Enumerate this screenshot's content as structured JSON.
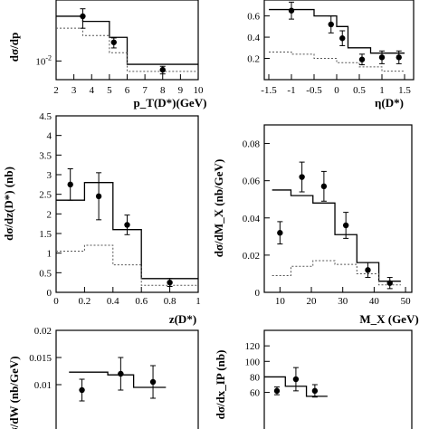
{
  "chart_data": [
    {
      "type": "line",
      "xlabel": "p_T(D*)(GeV)",
      "ylabel": "dσ/dp",
      "xlim": [
        2,
        10
      ],
      "ylim": [
        0.004,
        0.2
      ],
      "log_y": true,
      "x_ticks": [
        "2",
        "3",
        "4",
        "5",
        "6",
        "7",
        "8",
        "9",
        "10"
      ],
      "y_ticks": [
        "10^-2"
      ],
      "points": [
        {
          "x": 3.5,
          "y": 0.09,
          "err": 0.04
        },
        {
          "x": 5.25,
          "y": 0.025,
          "err": 0.006
        },
        {
          "x": 8.0,
          "y": 0.0065,
          "err": 0.0012
        }
      ],
      "model_solid": {
        "edges": [
          2,
          3.5,
          5,
          6,
          10
        ],
        "values": [
          0.09,
          0.07,
          0.032,
          0.0085
        ]
      },
      "model_dotted": {
        "edges": [
          2,
          3.5,
          5,
          6,
          10
        ],
        "values": [
          0.05,
          0.035,
          0.015,
          0.006
        ]
      }
    },
    {
      "type": "line",
      "xlabel": "η(D*)",
      "ylabel": "",
      "xlim": [
        -1.6,
        1.7
      ],
      "ylim": [
        0,
        0.75
      ],
      "x_ticks": [
        "-1.5",
        "-1",
        "-0.5",
        "0",
        "0.5",
        "1",
        "1.5"
      ],
      "y_ticks": [
        "0.2",
        "0.4",
        "0.6"
      ],
      "points": [
        {
          "x": -1.0,
          "y": 0.65,
          "err": 0.08
        },
        {
          "x": -0.125,
          "y": 0.52,
          "err": 0.08
        },
        {
          "x": 0.125,
          "y": 0.39,
          "err": 0.07
        },
        {
          "x": 0.56,
          "y": 0.19,
          "err": 0.05
        },
        {
          "x": 1.0,
          "y": 0.21,
          "err": 0.06
        },
        {
          "x": 1.375,
          "y": 0.21,
          "err": 0.06
        }
      ],
      "model_solid": {
        "edges": [
          -1.5,
          -0.5,
          0,
          0.25,
          0.75,
          1.25,
          1.5
        ],
        "values": [
          0.66,
          0.6,
          0.5,
          0.3,
          0.25,
          0.25
        ]
      },
      "model_dotted": {
        "edges": [
          -1.5,
          -1,
          -0.5,
          0,
          0.5,
          1,
          1.5
        ],
        "values": [
          0.26,
          0.24,
          0.2,
          0.16,
          0.12,
          0.08
        ]
      }
    },
    {
      "type": "line",
      "xlabel": "z(D*)",
      "ylabel": "dσ/dz(D*) (nb)",
      "xlim": [
        0,
        1
      ],
      "ylim": [
        0,
        4.5
      ],
      "x_ticks": [
        "0",
        "0.2",
        "0.4",
        "0.6",
        "0.8",
        "1"
      ],
      "y_ticks": [
        "0",
        "0.5",
        "1",
        "1.5",
        "2",
        "2.5",
        "3",
        "3.5",
        "4",
        "4.5"
      ],
      "points": [
        {
          "x": 0.1,
          "y": 2.75,
          "err": 0.4
        },
        {
          "x": 0.3,
          "y": 2.45,
          "err": 0.6
        },
        {
          "x": 0.5,
          "y": 1.72,
          "err": 0.25
        },
        {
          "x": 0.8,
          "y": 0.25,
          "err": 0.1
        }
      ],
      "model_solid": {
        "edges": [
          0,
          0.2,
          0.4,
          0.6,
          1.0
        ],
        "values": [
          2.35,
          2.8,
          1.6,
          0.35
        ]
      },
      "model_dotted": {
        "edges": [
          0,
          0.2,
          0.4,
          0.6,
          1.0
        ],
        "values": [
          1.05,
          1.2,
          0.7,
          0.18
        ]
      }
    },
    {
      "type": "line",
      "xlabel": "M_X (GeV)",
      "ylabel": "dσ/dM_X (nb/GeV)",
      "xlim": [
        5,
        52
      ],
      "ylim": [
        0,
        0.09
      ],
      "x_ticks": [
        "10",
        "20",
        "30",
        "40",
        "50"
      ],
      "y_ticks": [
        "0",
        "0.02",
        "0.04",
        "0.06",
        "0.08"
      ],
      "points": [
        {
          "x": 10,
          "y": 0.032,
          "err": 0.006
        },
        {
          "x": 17,
          "y": 0.062,
          "err": 0.008
        },
        {
          "x": 24,
          "y": 0.057,
          "err": 0.008
        },
        {
          "x": 31,
          "y": 0.036,
          "err": 0.007
        },
        {
          "x": 38,
          "y": 0.012,
          "err": 0.004
        },
        {
          "x": 45,
          "y": 0.005,
          "err": 0.003
        }
      ],
      "model_solid": {
        "edges": [
          7.5,
          13.5,
          20.5,
          27.5,
          34.5,
          41.5,
          48.5
        ],
        "values": [
          0.055,
          0.052,
          0.048,
          0.031,
          0.016,
          0.006
        ]
      },
      "model_dotted": {
        "edges": [
          7.5,
          13.5,
          20.5,
          27.5,
          34.5,
          41.5,
          48.5
        ],
        "values": [
          0.009,
          0.014,
          0.017,
          0.015,
          0.01,
          0.004
        ]
      }
    },
    {
      "type": "line",
      "xlabel": "",
      "ylabel": "dσ/dW (nb/GeV)",
      "xlim": [
        60,
        280
      ],
      "ylim": [
        0,
        0.02
      ],
      "x_ticks": [],
      "y_ticks": [
        "0.01",
        "0.015",
        "0.02"
      ],
      "points": [
        {
          "x": 100,
          "y": 0.009,
          "err": 0.002
        },
        {
          "x": 160,
          "y": 0.012,
          "err": 0.003
        },
        {
          "x": 210,
          "y": 0.0105,
          "err": 0.003
        }
      ],
      "model_solid": {
        "edges": [
          80,
          140,
          180,
          230
        ],
        "values": [
          0.0123,
          0.0118,
          0.0095
        ]
      },
      "model_dotted": {
        "edges": [],
        "values": []
      }
    },
    {
      "type": "line",
      "xlabel": "",
      "ylabel": "dσ/dx_IP (nb)",
      "xlim": [
        0,
        0.035
      ],
      "ylim": [
        0,
        140
      ],
      "x_ticks": [],
      "y_ticks": [
        "60",
        "80",
        "100",
        "120"
      ],
      "points": [
        {
          "x": 0.003,
          "y": 62,
          "err": 5
        },
        {
          "x": 0.0075,
          "y": 77,
          "err": 15
        },
        {
          "x": 0.012,
          "y": 62,
          "err": 8
        }
      ],
      "model_solid": {
        "edges": [
          0,
          0.005,
          0.01,
          0.015
        ],
        "values": [
          80,
          68,
          55
        ]
      },
      "model_dotted": {
        "edges": [],
        "values": []
      }
    }
  ]
}
